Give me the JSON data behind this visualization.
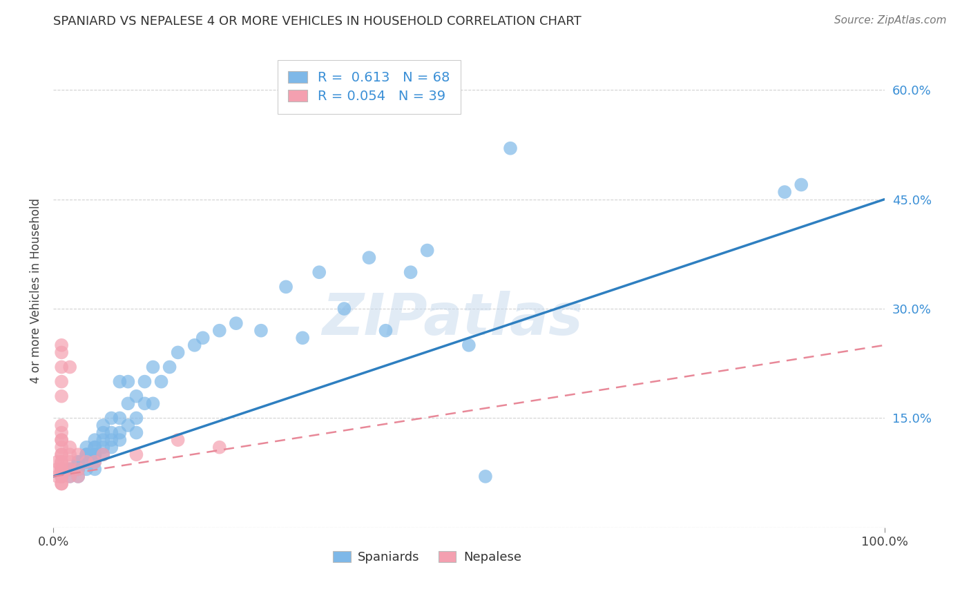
{
  "title": "SPANIARD VS NEPALESE 4 OR MORE VEHICLES IN HOUSEHOLD CORRELATION CHART",
  "source": "Source: ZipAtlas.com",
  "xlabel_label": "Spaniards",
  "ylabel_label": "4 or more Vehicles in Household",
  "legend_label1": "Spaniards",
  "legend_label2": "Nepalese",
  "R1": "0.613",
  "N1": "68",
  "R2": "0.054",
  "N2": "39",
  "xmin": 0.0,
  "xmax": 1.0,
  "ymin": 0.0,
  "ymax": 0.65,
  "yticks": [
    0.0,
    0.15,
    0.3,
    0.45,
    0.6
  ],
  "ytick_labels": [
    "",
    "15.0%",
    "30.0%",
    "45.0%",
    "60.0%"
  ],
  "xticks": [
    0.0,
    1.0
  ],
  "xtick_labels": [
    "0.0%",
    "100.0%"
  ],
  "color_spaniards": "#7EB8E8",
  "color_nepalese": "#F4A0B0",
  "line_color_spaniards": "#2E7FC0",
  "line_color_nepalese": "#E88898",
  "watermark": "ZIPatlas",
  "background_color": "#ffffff",
  "grid_color": "#cccccc",
  "spaniards_x": [
    0.01,
    0.02,
    0.02,
    0.02,
    0.03,
    0.03,
    0.03,
    0.03,
    0.03,
    0.04,
    0.04,
    0.04,
    0.04,
    0.04,
    0.04,
    0.04,
    0.05,
    0.05,
    0.05,
    0.05,
    0.05,
    0.05,
    0.05,
    0.05,
    0.06,
    0.06,
    0.06,
    0.06,
    0.06,
    0.07,
    0.07,
    0.07,
    0.07,
    0.08,
    0.08,
    0.08,
    0.08,
    0.09,
    0.09,
    0.09,
    0.1,
    0.1,
    0.1,
    0.11,
    0.11,
    0.12,
    0.12,
    0.13,
    0.14,
    0.15,
    0.17,
    0.18,
    0.2,
    0.22,
    0.25,
    0.28,
    0.3,
    0.32,
    0.35,
    0.38,
    0.4,
    0.43,
    0.45,
    0.5,
    0.52,
    0.55,
    0.88,
    0.9
  ],
  "spaniards_y": [
    0.07,
    0.07,
    0.08,
    0.08,
    0.07,
    0.08,
    0.08,
    0.09,
    0.09,
    0.08,
    0.09,
    0.09,
    0.1,
    0.1,
    0.1,
    0.11,
    0.08,
    0.09,
    0.1,
    0.1,
    0.1,
    0.11,
    0.11,
    0.12,
    0.1,
    0.11,
    0.12,
    0.13,
    0.14,
    0.11,
    0.12,
    0.13,
    0.15,
    0.12,
    0.13,
    0.15,
    0.2,
    0.14,
    0.17,
    0.2,
    0.13,
    0.15,
    0.18,
    0.17,
    0.2,
    0.17,
    0.22,
    0.2,
    0.22,
    0.24,
    0.25,
    0.26,
    0.27,
    0.28,
    0.27,
    0.33,
    0.26,
    0.35,
    0.3,
    0.37,
    0.27,
    0.35,
    0.38,
    0.25,
    0.07,
    0.52,
    0.46,
    0.47
  ],
  "nepalese_x": [
    0.005,
    0.005,
    0.005,
    0.01,
    0.01,
    0.01,
    0.01,
    0.01,
    0.01,
    0.01,
    0.01,
    0.01,
    0.01,
    0.01,
    0.01,
    0.01,
    0.01,
    0.01,
    0.01,
    0.01,
    0.01,
    0.01,
    0.01,
    0.01,
    0.02,
    0.02,
    0.02,
    0.02,
    0.02,
    0.02,
    0.03,
    0.03,
    0.03,
    0.04,
    0.05,
    0.06,
    0.1,
    0.15,
    0.2
  ],
  "nepalese_y": [
    0.07,
    0.08,
    0.09,
    0.06,
    0.06,
    0.07,
    0.07,
    0.08,
    0.08,
    0.08,
    0.09,
    0.09,
    0.1,
    0.1,
    0.11,
    0.12,
    0.12,
    0.13,
    0.14,
    0.18,
    0.2,
    0.22,
    0.24,
    0.25,
    0.07,
    0.08,
    0.09,
    0.1,
    0.11,
    0.22,
    0.07,
    0.08,
    0.1,
    0.09,
    0.09,
    0.1,
    0.1,
    0.12,
    0.11
  ],
  "trendline1_x": [
    0.0,
    1.0
  ],
  "trendline1_y": [
    0.07,
    0.45
  ],
  "trendline2_x": [
    0.0,
    1.0
  ],
  "trendline2_y": [
    0.07,
    0.25
  ]
}
